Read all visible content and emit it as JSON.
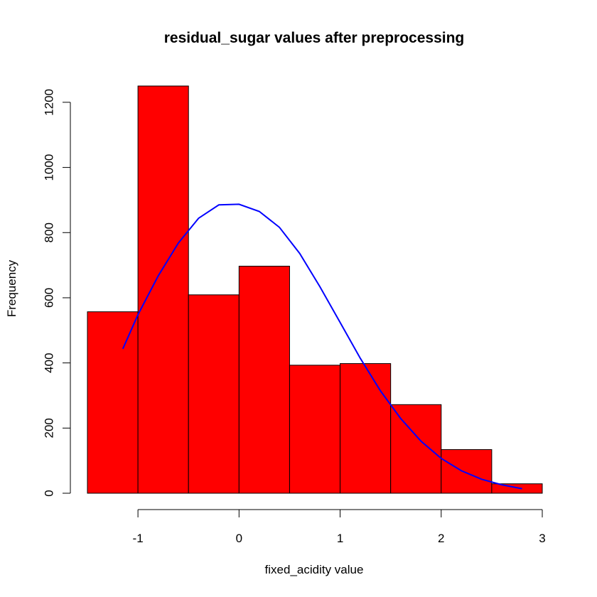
{
  "chart_data": {
    "type": "bar",
    "title": "residual_sugar values after preprocessing",
    "xlabel": "fixed_acidity value",
    "ylabel": "Frequency",
    "bin_edges": [
      -1.5,
      -1.0,
      -0.5,
      0.0,
      0.5,
      1.0,
      1.5,
      2.0,
      2.5,
      3.0
    ],
    "values": [
      557,
      1250,
      609,
      697,
      393,
      398,
      272,
      134,
      29
    ],
    "xlim": [
      -1.5,
      3.0
    ],
    "ylim": [
      0,
      1250
    ],
    "x_ticks": [
      -1,
      0,
      1,
      2,
      3
    ],
    "y_ticks": [
      0,
      200,
      400,
      600,
      800,
      1000,
      1200
    ],
    "curve": {
      "type": "line",
      "x": [
        -1.15,
        -1.0,
        -0.8,
        -0.6,
        -0.4,
        -0.2,
        0.0,
        0.2,
        0.4,
        0.6,
        0.8,
        1.0,
        1.2,
        1.4,
        1.6,
        1.8,
        2.0,
        2.2,
        2.4,
        2.6,
        2.8
      ],
      "y": [
        443,
        548,
        667,
        768,
        844,
        885,
        887,
        865,
        816,
        736,
        634,
        524,
        414,
        314,
        229,
        160,
        107,
        69,
        43,
        26,
        14
      ]
    },
    "colors": {
      "bar_fill": "#ff0000",
      "curve": "#0000ff"
    },
    "grid": false,
    "legend": "none"
  }
}
